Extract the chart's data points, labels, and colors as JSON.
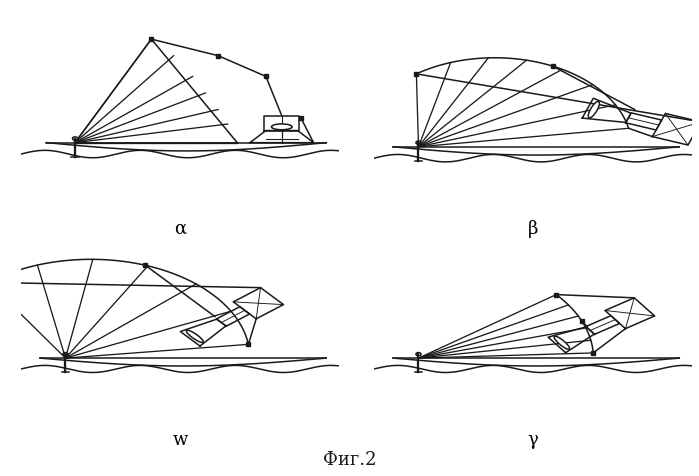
{
  "bg_color": "#ffffff",
  "line_color": "#1a1a1a",
  "line_width": 1.1,
  "fig_width": 6.99,
  "fig_height": 4.76,
  "labels": {
    "alpha": "α",
    "beta": "β",
    "w": "w",
    "gamma": "γ",
    "fig": "Фиг.2"
  }
}
